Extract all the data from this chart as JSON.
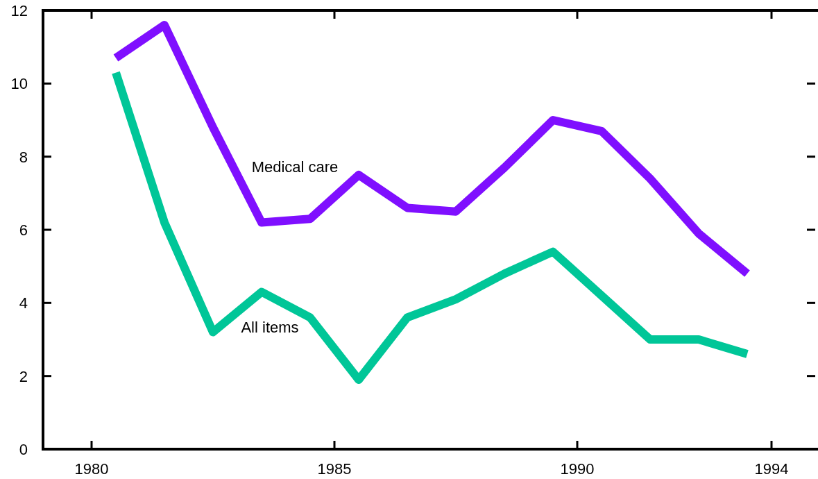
{
  "chart_data": {
    "type": "line",
    "x": [
      1980.5,
      1981.5,
      1982.5,
      1983.5,
      1984.5,
      1985.5,
      1986.5,
      1987.5,
      1988.5,
      1989.5,
      1990.5,
      1991.5,
      1992.5,
      1993.5
    ],
    "series": [
      {
        "name": "Medical care",
        "color": "#7f0fff",
        "values": [
          10.7,
          11.6,
          8.8,
          6.2,
          6.3,
          7.5,
          6.6,
          6.5,
          7.7,
          9.0,
          8.7,
          7.4,
          5.9,
          4.8
        ]
      },
      {
        "name": "All items",
        "color": "#00c698",
        "values": [
          10.3,
          6.2,
          3.2,
          4.3,
          3.6,
          1.9,
          3.6,
          4.1,
          4.8,
          5.4,
          4.2,
          3.0,
          3.0,
          2.6
        ]
      }
    ],
    "xlim": [
      1979,
      1994.9
    ],
    "xticks": [
      1980,
      1985,
      1990,
      1994
    ],
    "ylim": [
      0,
      12
    ],
    "yticks": [
      0,
      2,
      4,
      6,
      8,
      10,
      12
    ],
    "grid": false,
    "legend": false,
    "marker": "none",
    "line_style": "solid"
  }
}
